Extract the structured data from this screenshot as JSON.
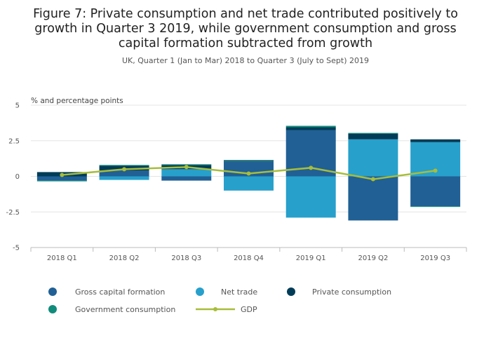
{
  "chart_data": {
    "type": "bar",
    "title_lines": [
      "Figure 7: Private consumption and net trade contributed positively to",
      "growth in Quarter 3 2019, while government consumption and gross",
      "capital formation subtracted from growth"
    ],
    "subtitle": "UK, Quarter 1 (Jan to Mar) 2018 to Quarter 3 (July to Sept) 2019",
    "ylabel": "% and percentage points",
    "ylim": [
      -5,
      5
    ],
    "yticks": [
      5,
      2.5,
      0,
      -2.5,
      -5
    ],
    "ytick_labels": [
      "5",
      "2.5",
      "0",
      "-2.5",
      "-5"
    ],
    "grid": true,
    "stacked": true,
    "categories": [
      "2018 Q1",
      "2018 Q2",
      "2018 Q3",
      "2018 Q4",
      "2019 Q1",
      "2019 Q2",
      "2019 Q3"
    ],
    "series": [
      {
        "name": "Gross capital formation",
        "kind": "bar",
        "color": "#206095",
        "values": [
          -0.3,
          0.4,
          -0.3,
          1.05,
          3.25,
          -3.1,
          -2.1
        ]
      },
      {
        "name": "Net trade",
        "kind": "bar",
        "color": "#27a0cc",
        "values": [
          0.0,
          -0.25,
          0.5,
          -1.0,
          -2.9,
          2.6,
          2.4
        ]
      },
      {
        "name": "Private consumption",
        "kind": "bar",
        "color": "#003c57",
        "values": [
          0.3,
          0.35,
          0.3,
          0.05,
          0.2,
          0.4,
          0.2
        ]
      },
      {
        "name": "Government consumption",
        "kind": "bar",
        "color": "#118c7b",
        "values": [
          -0.05,
          0.05,
          0.05,
          0.05,
          0.1,
          0.05,
          -0.05
        ]
      },
      {
        "name": "GDP",
        "kind": "line",
        "color": "#a8bd3a",
        "values": [
          0.1,
          0.5,
          0.65,
          0.2,
          0.6,
          -0.2,
          0.4
        ]
      }
    ],
    "legend": {
      "position": "bottom",
      "rows": [
        [
          "Gross capital formation",
          "Net trade",
          "Private consumption"
        ],
        [
          "Government consumption",
          "GDP"
        ]
      ]
    }
  }
}
